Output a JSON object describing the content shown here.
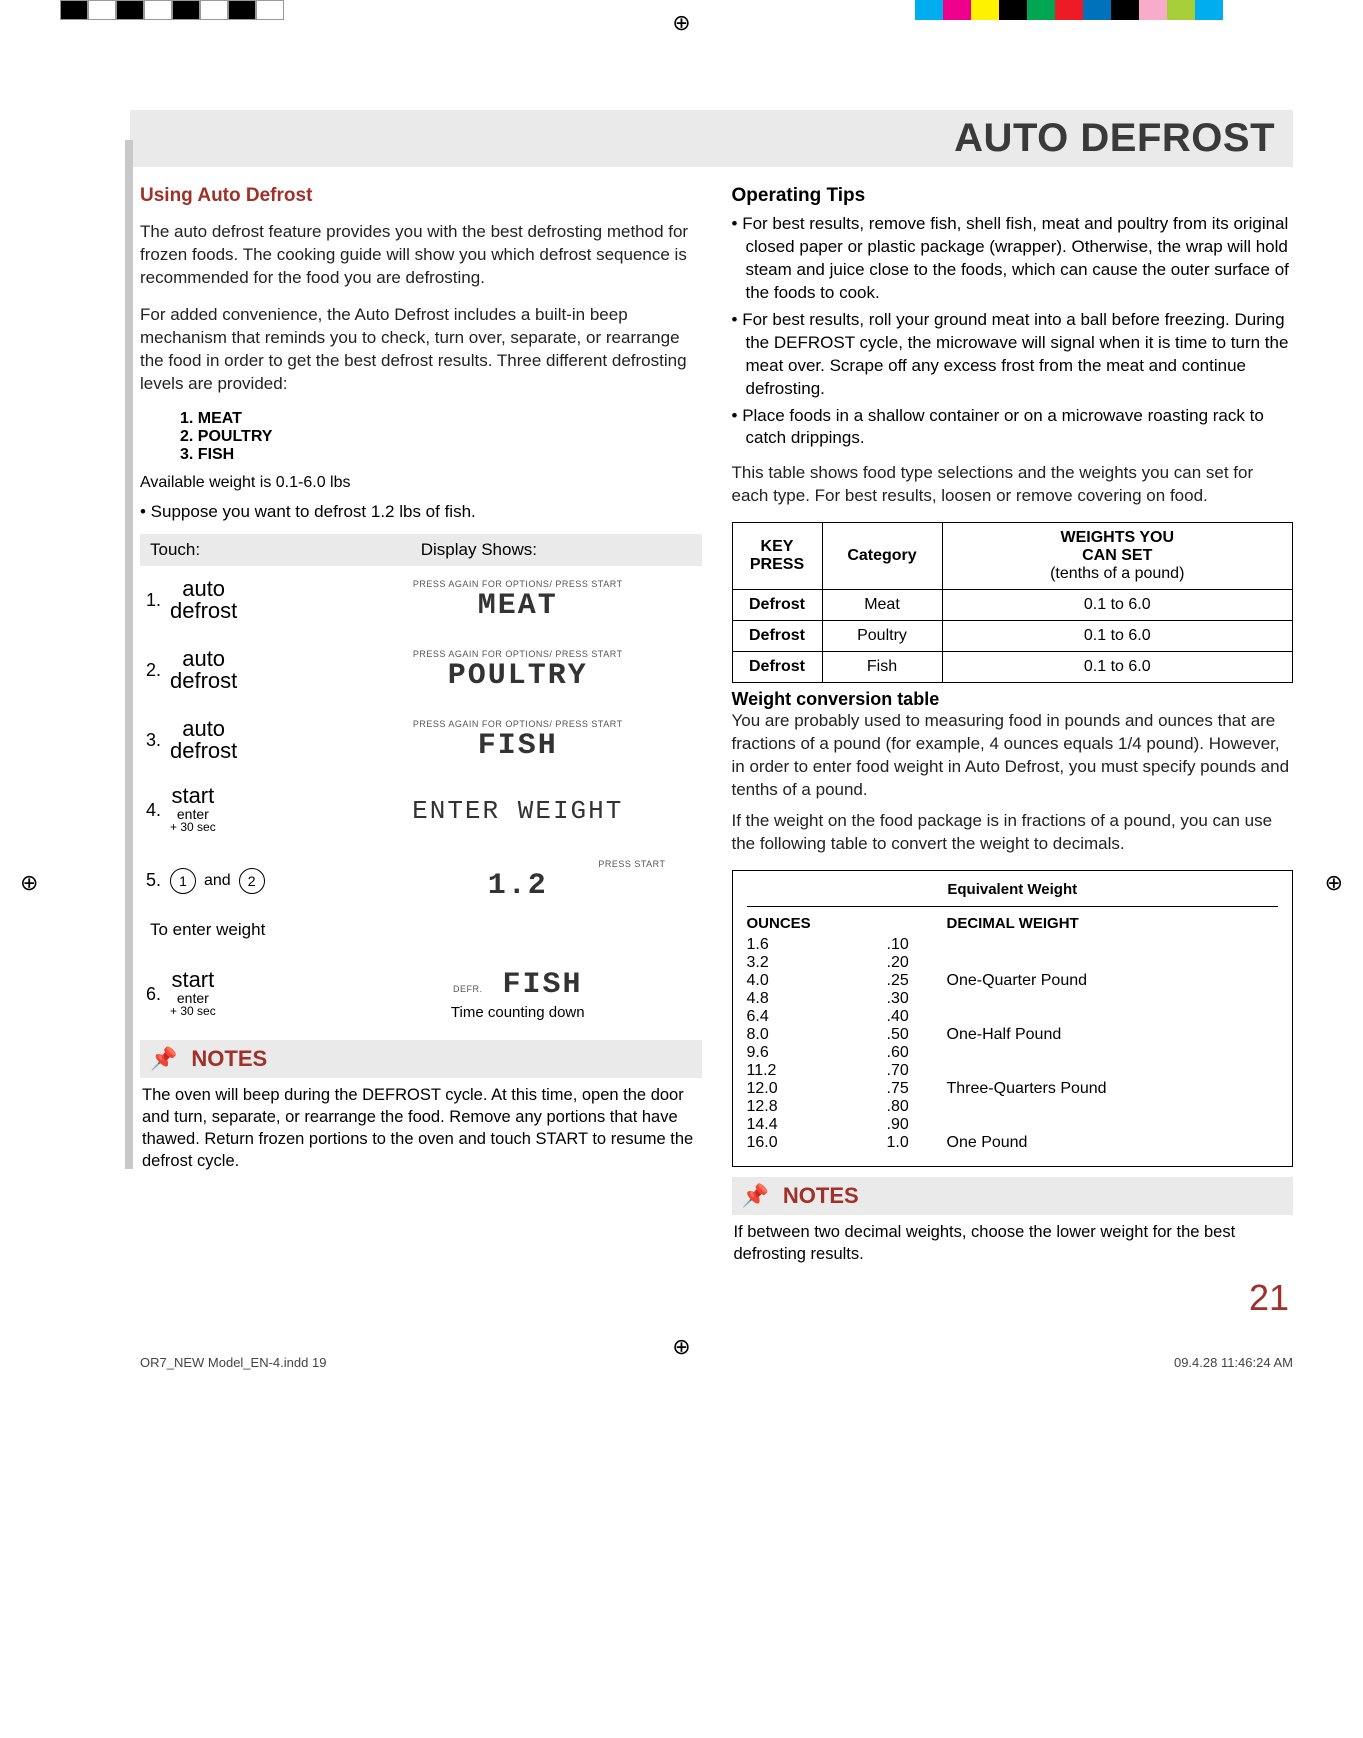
{
  "colorbar1": [
    "#000000",
    "#ffffff",
    "#000000",
    "#ffffff",
    "#000000",
    "#ffffff",
    "#000000",
    "#ffffff"
  ],
  "colorbar2": [
    "#00aeef",
    "#ec008c",
    "#fff200",
    "#000000",
    "#00a651",
    "#ed1c24",
    "#0072bc",
    "#000000",
    "#f7adc9",
    "#a6ce39",
    "#00aeef"
  ],
  "page_title": "AUTO DEFROST",
  "left": {
    "using_title": "Using Auto Defrost",
    "p1": "The auto defrost feature provides you with the best defrosting method for frozen foods. The cooking guide will show you which defrost sequence is recommended for the food you are defrosting.",
    "p2": "For added convenience, the Auto Defrost includes a built-in beep mechanism that reminds you to check, turn over, separate, or rearrange the food in order to get the best defrost results. Three different defrosting levels are provided:",
    "levels": [
      "1. MEAT",
      "2. POULTRY",
      "3. FISH"
    ],
    "avail": "Available weight is 0.1-6.0 lbs",
    "suppose": "•   Suppose you want to defrost 1.2 lbs of fish.",
    "hdr_touch": "Touch:",
    "hdr_disp": "Display Shows:",
    "btn_auto1": "auto",
    "btn_auto2": "defrost",
    "btn_start1": "start",
    "btn_start2": "enter",
    "btn_start3": "+ 30 sec",
    "disp_hint": "PRESS AGAIN FOR OPTIONS/  PRESS START",
    "disp_meat": "MEAT",
    "disp_poultry": "POULTRY",
    "disp_fish": "FISH",
    "disp_enter": "ENTER WEIGHT",
    "disp_12": "1.2",
    "disp_press_start": "PRESS START",
    "disp_defr": "DEFR.",
    "and": "and",
    "enter_wt_note": "To enter weight",
    "tcd": "Time counting down",
    "notes_label": "NOTES",
    "notes_body": "The oven will beep during the DEFROST cycle. At this time, open the door and turn, separate, or rearrange the food. Remove any portions that have thawed. Return frozen portions to the oven and touch START to resume the defrost cycle."
  },
  "right": {
    "op_title": "Operating Tips",
    "tips": [
      "For best results, remove fish, shell fish, meat and poultry from its original closed paper or plastic package (wrapper). Otherwise, the wrap will hold steam and juice close to the foods, which can cause the outer surface of the foods to cook.",
      "For best results, roll your ground meat into a ball before freezing. During the DEFROST cycle, the microwave will signal when it is time to turn the meat over. Scrape off any excess frost from the meat and continue defrosting.",
      "Place foods in a shallow container or on a microwave roasting rack to catch drippings."
    ],
    "table_intro": "This table shows food type selections and the weights you can set for each type. For best results, loosen or remove covering on food.",
    "th_key": "KEY PRESS",
    "th_cat": "Category",
    "th_wt1": "WEIGHTS YOU",
    "th_wt2": "CAN SET",
    "th_wt3": "(tenths of a pound)",
    "rows": [
      {
        "key": "Defrost",
        "cat": "Meat",
        "wt": "0.1 to 6.0"
      },
      {
        "key": "Defrost",
        "cat": "Poultry",
        "wt": "0.1 to 6.0"
      },
      {
        "key": "Defrost",
        "cat": "Fish",
        "wt": "0.1 to 6.0"
      }
    ],
    "conv_title": "Weight conversion table",
    "conv_p1": "You are probably used to measuring food in pounds and ounces that are fractions of a pound (for example, 4 ounces equals 1/4 pound). However, in order to enter food weight in Auto Defrost, you must specify pounds and tenths of a pound.",
    "conv_p2": "If the weight on the food package is in fractions of a pound, you can use the following table to convert the weight to decimals.",
    "eq_header": "Equivalent  Weight",
    "col_ounces": "OUNCES",
    "col_dec": "DECIMAL WEIGHT",
    "conv_rows": [
      {
        "oz": "1.6",
        "dec": ".10",
        "note": ""
      },
      {
        "oz": "3.2",
        "dec": ".20",
        "note": ""
      },
      {
        "oz": "4.0",
        "dec": ".25",
        "note": "One-Quarter Pound"
      },
      {
        "oz": "4.8",
        "dec": ".30",
        "note": ""
      },
      {
        "oz": "6.4",
        "dec": ".40",
        "note": ""
      },
      {
        "oz": "8.0",
        "dec": ".50",
        "note": " One-Half Pound"
      },
      {
        "oz": "9.6",
        "dec": ".60",
        "note": ""
      },
      {
        "oz": "11.2",
        "dec": ".70",
        "note": ""
      },
      {
        "oz": "12.0",
        "dec": ".75",
        "note": "Three-Quarters Pound"
      },
      {
        "oz": "12.8",
        "dec": ".80",
        "note": ""
      },
      {
        "oz": "14.4",
        "dec": ".90",
        "note": ""
      },
      {
        "oz": "16.0",
        "dec": "1.0",
        "note": "One Pound"
      }
    ],
    "notes_label": "NOTES",
    "notes_body": "If between two decimal weights, choose the lower weight for the best defrosting results."
  },
  "pagenum": "21",
  "footer_left": "OR7_NEW Model_EN-4.indd   19",
  "footer_right": "09.4.28   11:46:24 AM"
}
